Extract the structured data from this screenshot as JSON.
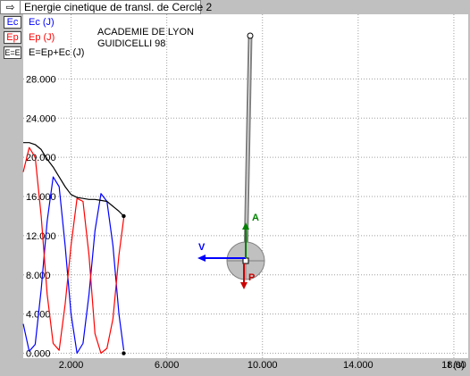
{
  "window": {
    "title": "Energie cinetique de transl. de Cercle 2",
    "title_icon": "arrow-right-icon"
  },
  "legend": [
    {
      "button": "Ec",
      "label": "Ec (J)",
      "color": "#0000ff"
    },
    {
      "button": "Ep",
      "label": "Ep (J)",
      "color": "#ff0000"
    },
    {
      "button": "E=E",
      "label": "E=Ep+Ec (J)",
      "color": "#000000"
    }
  ],
  "credits": {
    "line1": "ACADEMIE DE LYON",
    "line2": "GUIDICELLI 98"
  },
  "colors": {
    "ec": "#0000ff",
    "ep": "#ff0000",
    "e": "#000000",
    "grid": "#a0a0a0",
    "pendulum": "#808080",
    "vector_v": "#0000ff",
    "vector_a": "#008000",
    "vector_p": "#cc0000"
  },
  "vectors": {
    "velocity_label": "V",
    "acceleration_label": "A",
    "weight_label": "P"
  },
  "chart_data": {
    "type": "line",
    "xlabel": "t (s)",
    "ylabel": "",
    "xlim": [
      0,
      18.6
    ],
    "ylim": [
      -0.5,
      34.6
    ],
    "xticks": [
      {
        "value": 2,
        "label": "2.000"
      },
      {
        "value": 6,
        "label": "6.000"
      },
      {
        "value": 10,
        "label": "10.000"
      },
      {
        "value": 14,
        "label": "14.000"
      },
      {
        "value": 18,
        "label": "18.00"
      }
    ],
    "yticks": [
      {
        "value": 0,
        "label": "0.000"
      },
      {
        "value": 4,
        "label": "4.000"
      },
      {
        "value": 8,
        "label": "8.000"
      },
      {
        "value": 12,
        "label": "12.000"
      },
      {
        "value": 16,
        "label": "16.000"
      },
      {
        "value": 20,
        "label": "20.000"
      },
      {
        "value": 24,
        "label": "24.000"
      },
      {
        "value": 28,
        "label": "28.000"
      }
    ],
    "grid": true,
    "series": [
      {
        "name": "Ec (J)",
        "color": "#0000ff",
        "x": [
          0,
          0.25,
          0.5,
          0.75,
          1.0,
          1.25,
          1.5,
          1.75,
          2.0,
          2.25,
          2.5,
          2.75,
          3.0,
          3.25,
          3.5,
          3.75,
          4.0,
          4.2
        ],
        "y": [
          3.0,
          0.2,
          0.9,
          6.5,
          13.5,
          18.0,
          17.0,
          11.0,
          4.0,
          0.0,
          1.0,
          6.0,
          12.5,
          16.3,
          15.5,
          11.0,
          4.0,
          0.3
        ]
      },
      {
        "name": "Ep (J)",
        "color": "#ff0000",
        "x": [
          0,
          0.25,
          0.5,
          0.75,
          1.0,
          1.25,
          1.5,
          1.75,
          2.0,
          2.25,
          2.5,
          2.75,
          3.0,
          3.25,
          3.5,
          3.75,
          4.0,
          4.2
        ],
        "y": [
          18.5,
          21.0,
          20.0,
          14.0,
          6.0,
          1.0,
          0.3,
          5.0,
          11.0,
          15.8,
          15.5,
          10.0,
          2.0,
          0.0,
          0.5,
          3.5,
          10.0,
          13.8
        ]
      },
      {
        "name": "E=Ep+Ec (J)",
        "color": "#000000",
        "x": [
          0,
          0.25,
          0.5,
          0.75,
          1.0,
          1.25,
          1.5,
          1.75,
          2.0,
          2.25,
          2.5,
          2.75,
          3.0,
          3.25,
          3.5,
          3.75,
          4.0,
          4.2
        ],
        "y": [
          21.5,
          21.5,
          21.3,
          20.8,
          19.8,
          19.0,
          18.0,
          17.0,
          16.2,
          15.9,
          15.8,
          15.7,
          15.7,
          15.6,
          15.5,
          15.0,
          14.5,
          14.0
        ]
      }
    ],
    "endpoints": [
      {
        "x": 4.2,
        "y": 14.0
      },
      {
        "x": 4.2,
        "y": 0.0
      }
    ]
  }
}
